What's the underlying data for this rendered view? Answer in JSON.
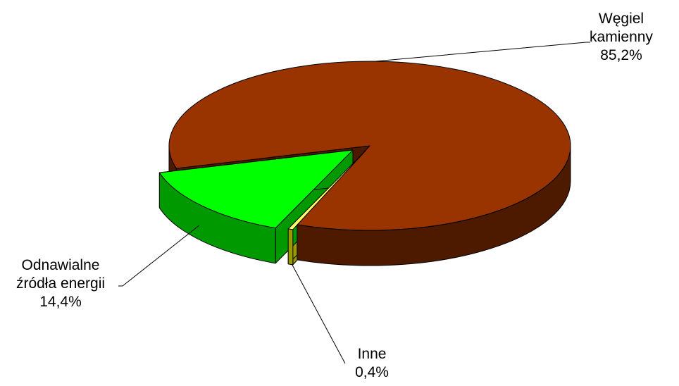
{
  "chart_data": {
    "type": "pie",
    "style": "3d-exploded",
    "slices": [
      {
        "name": "Węgiel kamienny",
        "label_lines": [
          "Węgiel",
          "kamienny"
        ],
        "value": 85.2,
        "value_label": "85,2%",
        "color": "#993300",
        "side_color": "#4d1a00"
      },
      {
        "name": "Inne",
        "label_lines": [
          "Inne"
        ],
        "value": 0.4,
        "value_label": "0,4%",
        "color": "#ffff66",
        "side_color": "#999900"
      },
      {
        "name": "Odnawialne źródła energii",
        "label_lines": [
          "Odnawialne",
          "źródła energii"
        ],
        "value": 14.4,
        "value_label": "14,4%",
        "color": "#00ff00",
        "side_color": "#009900"
      }
    ],
    "title": "",
    "legend": "none"
  }
}
